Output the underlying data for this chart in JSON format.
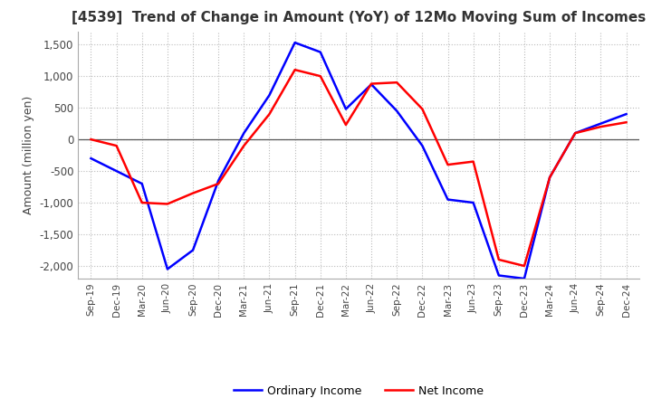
{
  "title": "[4539]  Trend of Change in Amount (YoY) of 12Mo Moving Sum of Incomes",
  "ylabel": "Amount (million yen)",
  "ylim": [
    -2200,
    1700
  ],
  "yticks": [
    -2000,
    -1500,
    -1000,
    -500,
    0,
    500,
    1000,
    1500
  ],
  "ordinary_income_color": "#0000FF",
  "net_income_color": "#FF0000",
  "background_color": "#FFFFFF",
  "grid_color": "#BBBBBB",
  "x_labels": [
    "Sep-19",
    "Dec-19",
    "Mar-20",
    "Jun-20",
    "Sep-20",
    "Dec-20",
    "Mar-21",
    "Jun-21",
    "Sep-21",
    "Dec-21",
    "Mar-22",
    "Jun-22",
    "Sep-22",
    "Dec-22",
    "Mar-23",
    "Jun-23",
    "Sep-23",
    "Dec-23",
    "Mar-24",
    "Jun-24",
    "Sep-24",
    "Dec-24"
  ],
  "ordinary_income": [
    -300,
    -500,
    -700,
    -2050,
    -1750,
    -650,
    100,
    700,
    1530,
    1380,
    480,
    870,
    450,
    -100,
    -950,
    -1000,
    -2150,
    -2200,
    -600,
    100,
    250,
    400
  ],
  "net_income": [
    0,
    -100,
    -1000,
    -1020,
    -850,
    -700,
    -100,
    400,
    1100,
    1000,
    230,
    880,
    900,
    480,
    -400,
    -350,
    -1900,
    -2000,
    -600,
    100,
    200,
    270
  ],
  "legend_ordinary": "Ordinary Income",
  "legend_net": "Net Income",
  "line_width": 1.8
}
